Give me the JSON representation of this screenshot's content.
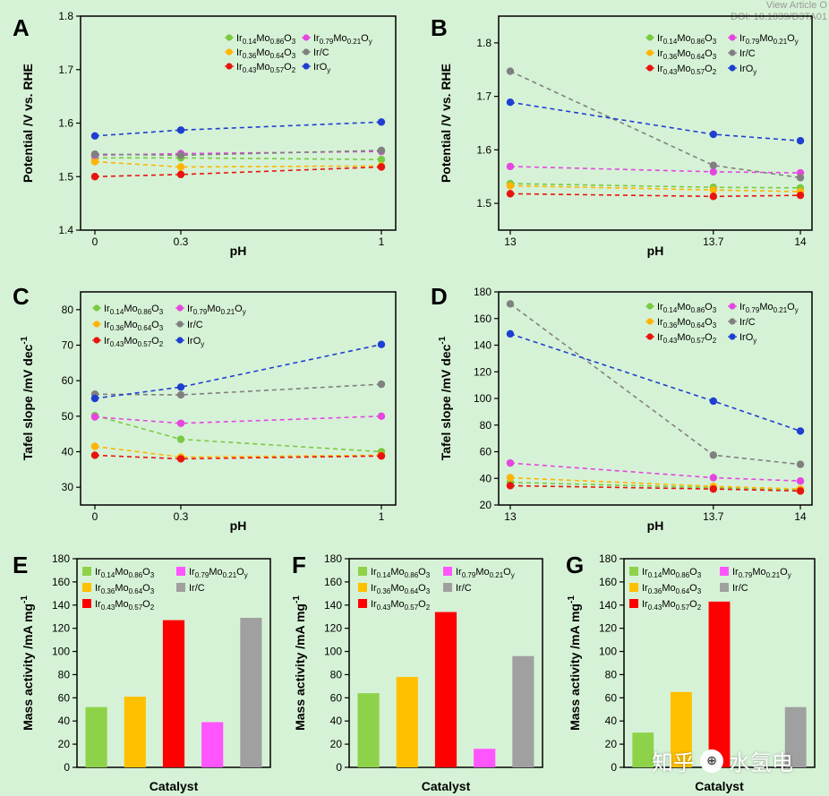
{
  "header": {
    "view_article": "View Article O",
    "doi": "DOI: 10.1039/D3TA01"
  },
  "watermark": {
    "text1": "知乎",
    "text2": "水氢电"
  },
  "colors": {
    "Ir14": "#7ac943",
    "Ir36": "#ffb400",
    "Ir43": "#e8140f",
    "Ir79": "#e546e0",
    "IrC": "#808080",
    "IrOy": "#1f3fd1",
    "IrC_bar": "#a0a0a0",
    "Ir79_bar": "#ff55ff",
    "Ir14_bar": "#8ed24a",
    "Ir36_bar": "#ffc000",
    "Ir43_bar": "#ff0000"
  },
  "chart_data": [
    {
      "id": "A",
      "type": "line",
      "panel_label": "A",
      "xlabel": "pH",
      "ylabel": "Potential /V vs. RHE",
      "categories": [
        "0",
        "0.3",
        "1"
      ],
      "xvals": [
        0,
        0.3,
        1
      ],
      "xlim": [
        -0.05,
        1.05
      ],
      "ylim": [
        1.4,
        1.8
      ],
      "yticks": [
        "1.4",
        "1.5",
        "1.6",
        "1.7",
        "1.8"
      ],
      "ytickvals": [
        1.4,
        1.5,
        1.6,
        1.7,
        1.8
      ],
      "series": [
        {
          "key": "Ir14",
          "values": [
            1.535,
            1.535,
            1.532
          ]
        },
        {
          "key": "Ir36",
          "values": [
            1.528,
            1.518,
            1.52
          ]
        },
        {
          "key": "Ir43",
          "values": [
            1.5,
            1.504,
            1.518
          ]
        },
        {
          "key": "Ir79",
          "values": [
            1.54,
            1.543,
            1.547
          ]
        },
        {
          "key": "IrC",
          "values": [
            1.542,
            1.54,
            1.549
          ]
        },
        {
          "key": "IrOy",
          "values": [
            1.576,
            1.587,
            1.602
          ]
        }
      ]
    },
    {
      "id": "B",
      "type": "line",
      "panel_label": "B",
      "xlabel": "pH",
      "ylabel": "Potential /V vs. RHE",
      "categories": [
        "13",
        "13.7",
        "14"
      ],
      "xvals": [
        13,
        13.7,
        14
      ],
      "xlim": [
        12.96,
        14.04
      ],
      "ylim": [
        1.45,
        1.85
      ],
      "yticks": [
        "1.5",
        "1.6",
        "1.7",
        "1.8"
      ],
      "ytickvals": [
        1.5,
        1.6,
        1.7,
        1.8
      ],
      "series": [
        {
          "key": "Ir14",
          "values": [
            1.537,
            1.53,
            1.529
          ]
        },
        {
          "key": "Ir36",
          "values": [
            1.533,
            1.525,
            1.522
          ]
        },
        {
          "key": "Ir43",
          "values": [
            1.518,
            1.513,
            1.515
          ]
        },
        {
          "key": "Ir79",
          "values": [
            1.569,
            1.559,
            1.557
          ]
        },
        {
          "key": "IrC",
          "values": [
            1.747,
            1.571,
            1.548
          ]
        },
        {
          "key": "IrOy",
          "values": [
            1.689,
            1.629,
            1.617
          ]
        }
      ]
    },
    {
      "id": "C",
      "type": "line",
      "panel_label": "C",
      "xlabel": "pH",
      "ylabel": "Tafel slope /mV dec",
      "ylabel_sup": "-1",
      "categories": [
        "0",
        "0.3",
        "1"
      ],
      "xvals": [
        0,
        0.3,
        1
      ],
      "xlim": [
        -0.05,
        1.05
      ],
      "ylim": [
        25,
        85
      ],
      "yticks": [
        "30",
        "40",
        "50",
        "60",
        "70",
        "80"
      ],
      "ytickvals": [
        30,
        40,
        50,
        60,
        70,
        80
      ],
      "series": [
        {
          "key": "Ir14",
          "values": [
            50.2,
            43.5,
            40.0
          ]
        },
        {
          "key": "Ir36",
          "values": [
            41.5,
            38.5,
            39.0
          ]
        },
        {
          "key": "Ir43",
          "values": [
            39.0,
            38.0,
            38.8
          ]
        },
        {
          "key": "Ir79",
          "values": [
            49.8,
            48.0,
            50.0
          ]
        },
        {
          "key": "IrC",
          "values": [
            56.2,
            56.0,
            59.0
          ]
        },
        {
          "key": "IrOy",
          "values": [
            55.0,
            58.2,
            70.2
          ]
        }
      ]
    },
    {
      "id": "D",
      "type": "line",
      "panel_label": "D",
      "xlabel": "pH",
      "ylabel": "Tafel slope /mV dec",
      "ylabel_sup": "-1",
      "categories": [
        "13",
        "13.7",
        "14"
      ],
      "xvals": [
        13,
        13.7,
        14
      ],
      "xlim": [
        12.96,
        14.04
      ],
      "ylim": [
        20,
        180
      ],
      "yticks": [
        "20",
        "40",
        "60",
        "80",
        "100",
        "120",
        "140",
        "160",
        "180"
      ],
      "ytickvals": [
        20,
        40,
        60,
        80,
        100,
        120,
        140,
        160,
        180
      ],
      "series": [
        {
          "key": "Ir14",
          "values": [
            37.0,
            33.0,
            31.0
          ]
        },
        {
          "key": "Ir36",
          "values": [
            40.5,
            34.0,
            32.0
          ]
        },
        {
          "key": "Ir43",
          "values": [
            34.5,
            32.0,
            30.5
          ]
        },
        {
          "key": "Ir79",
          "values": [
            51.5,
            40.5,
            38.0
          ]
        },
        {
          "key": "IrC",
          "values": [
            171.0,
            57.5,
            50.5
          ]
        },
        {
          "key": "IrOy",
          "values": [
            148.5,
            98.0,
            75.5
          ]
        }
      ]
    },
    {
      "id": "E",
      "type": "bar",
      "panel_label": "E",
      "xlabel": "Catalyst",
      "ylabel": "Mass activity /mA mg",
      "ylabel_sup": "-1",
      "ylim": [
        0,
        180
      ],
      "yticks": [
        "0",
        "20",
        "40",
        "60",
        "80",
        "100",
        "120",
        "140",
        "160",
        "180"
      ],
      "ytickvals": [
        0,
        20,
        40,
        60,
        80,
        100,
        120,
        140,
        160,
        180
      ],
      "bars": [
        {
          "key": "Ir14",
          "value": 52
        },
        {
          "key": "Ir36",
          "value": 61
        },
        {
          "key": "Ir43",
          "value": 127
        },
        {
          "key": "Ir79",
          "value": 39
        },
        {
          "key": "IrC",
          "value": 129
        }
      ]
    },
    {
      "id": "F",
      "type": "bar",
      "panel_label": "F",
      "xlabel": "Catalyst",
      "ylabel": "Mass activity /mA mg",
      "ylabel_sup": "-1",
      "ylim": [
        0,
        180
      ],
      "yticks": [
        "0",
        "20",
        "40",
        "60",
        "80",
        "100",
        "120",
        "140",
        "160",
        "180"
      ],
      "ytickvals": [
        0,
        20,
        40,
        60,
        80,
        100,
        120,
        140,
        160,
        180
      ],
      "bars": [
        {
          "key": "Ir14",
          "value": 64
        },
        {
          "key": "Ir36",
          "value": 78
        },
        {
          "key": "Ir43",
          "value": 134
        },
        {
          "key": "Ir79",
          "value": 16
        },
        {
          "key": "IrC",
          "value": 96
        }
      ]
    },
    {
      "id": "G",
      "type": "bar",
      "panel_label": "G",
      "xlabel": "Catalyst",
      "ylabel": "Mass activity /mA mg",
      "ylabel_sup": "-1",
      "ylim": [
        0,
        180
      ],
      "yticks": [
        "0",
        "20",
        "40",
        "60",
        "80",
        "100",
        "120",
        "140",
        "160",
        "180"
      ],
      "ytickvals": [
        0,
        20,
        40,
        60,
        80,
        100,
        120,
        140,
        160,
        180
      ],
      "bars": [
        {
          "key": "Ir14",
          "value": 30
        },
        {
          "key": "Ir36",
          "value": 65
        },
        {
          "key": "Ir43",
          "value": 143
        },
        {
          "key": "Ir79",
          "value": 0
        },
        {
          "key": "IrC",
          "value": 52
        }
      ]
    }
  ],
  "legend_labels": {
    "Ir14": [
      "Ir",
      "0.14",
      "Mo",
      "0.86",
      "O",
      "3"
    ],
    "Ir36": [
      "Ir",
      "0.36",
      "Mo",
      "0.64",
      "O",
      "3"
    ],
    "Ir43": [
      "Ir",
      "0.43",
      "Mo",
      "0.57",
      "O",
      "2"
    ],
    "Ir79": [
      "Ir",
      "0.79",
      "Mo",
      "0.21",
      "O",
      "y"
    ],
    "IrC": [
      "Ir/C"
    ],
    "IrOy": [
      "IrO",
      "y"
    ]
  },
  "legend_text": {
    "Ir14": "Ir0.14Mo0.86O3",
    "Ir36": "Ir0.36Mo0.64O3",
    "Ir43": "Ir0.43Mo0.57O2",
    "Ir79": "Ir0.79Mo0.21Oy",
    "IrC": "Ir/C",
    "IrOy": "IrOy"
  }
}
